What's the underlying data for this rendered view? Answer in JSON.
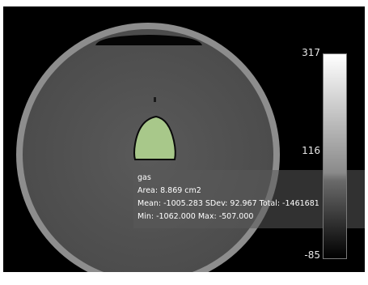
{
  "viewer": {
    "colorbar": {
      "max_label": "317",
      "mid_label": "116",
      "min_label": "-85"
    },
    "roi": {
      "name": "gas",
      "area_line": "Area: 8.869 cm2",
      "stats_line": "Mean: -1005.283 SDev: 92.967 Total: -1461681",
      "range_line": "Min: -1062.000 Max: -507.000",
      "fill_color": "#a8c88a"
    }
  }
}
